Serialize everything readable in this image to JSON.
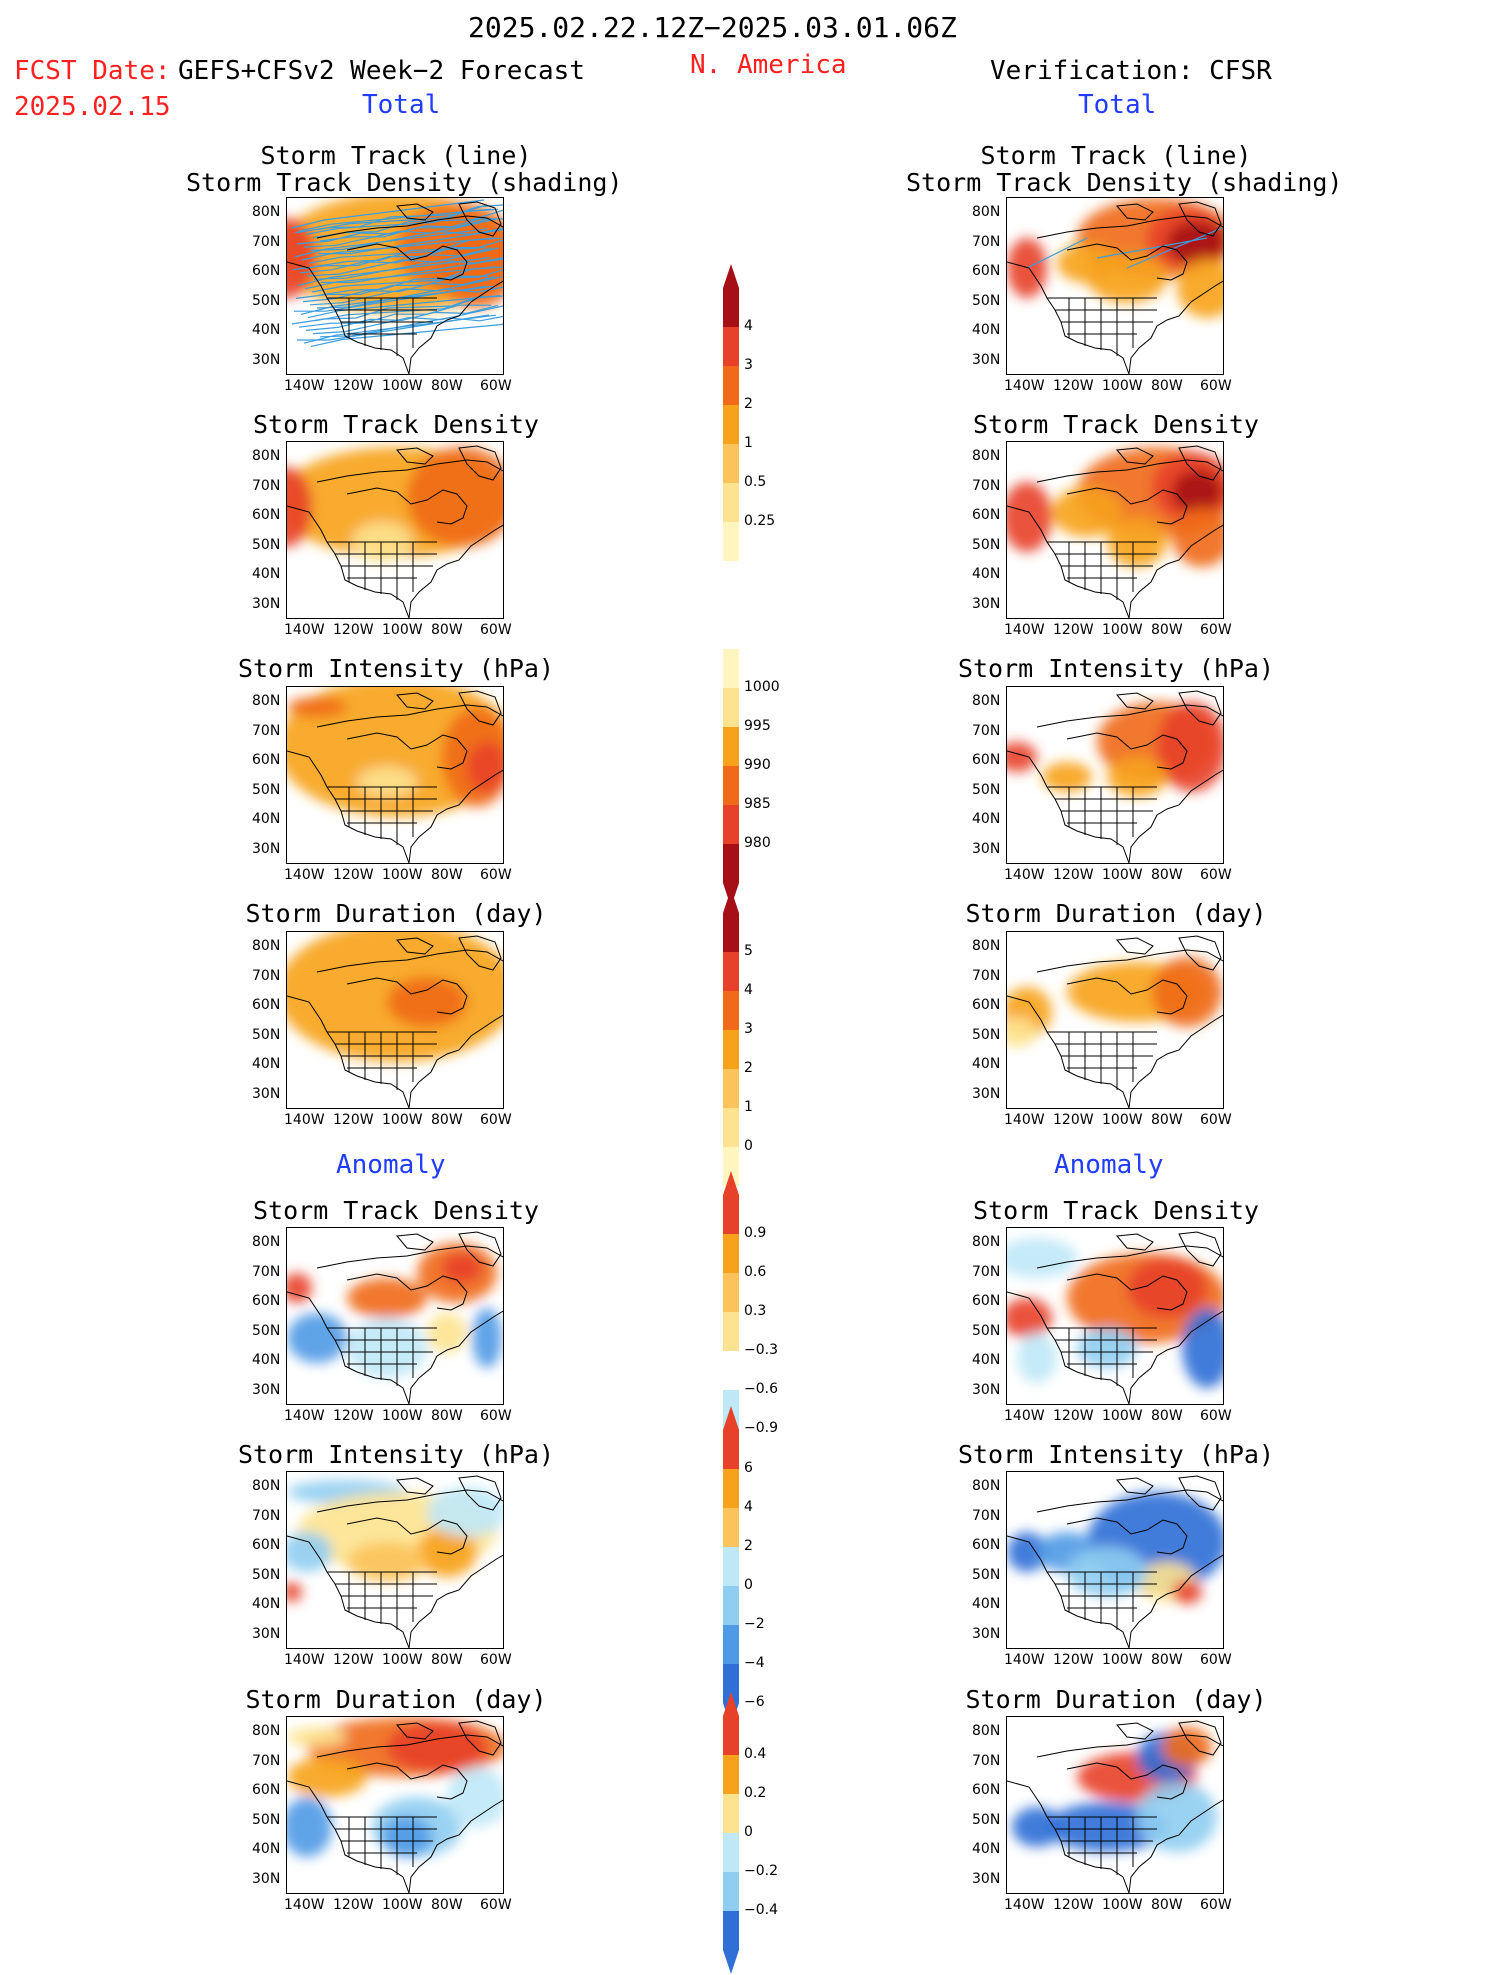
{
  "header": {
    "period": "2025.02.22.12Z−2025.03.01.06Z",
    "region": "N. America",
    "fcst_label": "FCST Date:",
    "forecast_model": "GEFS+CFSv2 Week−2 Forecast",
    "fcst_date": "2025.02.15",
    "verification": "Verification: CFSR",
    "total_left": "Total",
    "total_right": "Total",
    "anomaly_left": "Anomaly",
    "anomaly_right": "Anomaly"
  },
  "panel_titles": {
    "track_line": "Storm Track (line)",
    "track_shading": "Storm Track Density (shading)",
    "density": "Storm Track Density",
    "intensity": "Storm Intensity (hPa)",
    "duration": "Storm Duration (day)"
  },
  "axes": {
    "lat_ticks": [
      "80N",
      "70N",
      "60N",
      "50N",
      "40N",
      "30N"
    ],
    "lon_ticks": [
      "140W",
      "120W",
      "100W",
      "80W",
      "60W"
    ]
  },
  "colorbars": {
    "density_total": [
      "4",
      "3",
      "2",
      "1",
      "0.5",
      "0.25"
    ],
    "intensity_total": [
      "1000",
      "995",
      "990",
      "985",
      "980"
    ],
    "duration_total": [
      "5",
      "4",
      "3",
      "2",
      "1",
      "0"
    ],
    "density_anom": [
      "0.9",
      "0.6",
      "0.3",
      "−0.3",
      "−0.6",
      "−0.9"
    ],
    "intensity_anom": [
      "6",
      "4",
      "2",
      "0",
      "−2",
      "−4",
      "−6"
    ],
    "duration_anom": [
      "0.4",
      "0.2",
      "0",
      "−0.2",
      "−0.4"
    ]
  },
  "colors": {
    "dark_red": "#a50f15",
    "red": "#e8412a",
    "orange_red": "#f06a1a",
    "orange": "#f7a21b",
    "light_orange": "#fbc35a",
    "yellow": "#fde38f",
    "pale_yellow": "#fff5bf",
    "pale_blue": "#bfe8f7",
    "light_blue": "#8fcdf1",
    "mid_blue": "#4f9ae6",
    "blue": "#2f6fd6",
    "track_line": "#3a9ee0"
  }
}
